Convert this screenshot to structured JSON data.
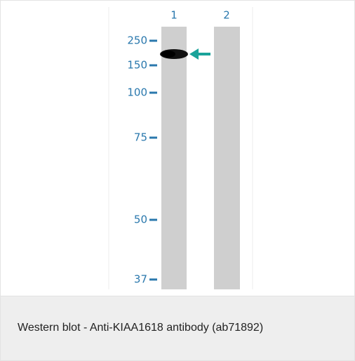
{
  "figure": {
    "lanes": [
      "1",
      "2"
    ],
    "markers": [
      "250",
      "150",
      "100",
      "75",
      "50",
      "37"
    ]
  },
  "caption": "Western blot - Anti-KIAA1618 antibody (ab71892)"
}
